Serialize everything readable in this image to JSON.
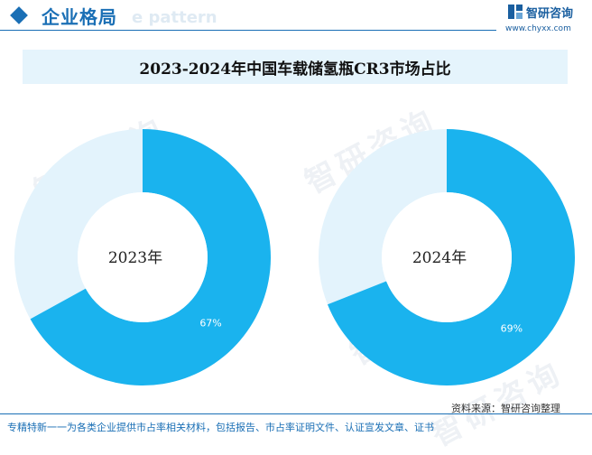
{
  "header": {
    "title": "企业格局",
    "ghost_text": "e pattern",
    "brand_name": "智研咨询",
    "brand_url": "www.chyxx.com",
    "logo_icon": "chyxx-logo-icon",
    "accent_color": "#1a6fb5"
  },
  "watermark": {
    "text": "智研咨询"
  },
  "chart_data": {
    "type": "pie",
    "title": "2023-2024年中国车载储氢瓶CR3市场占比",
    "colors": {
      "share": "#1ab3ee",
      "rest": "#e3f3fc"
    },
    "charts": [
      {
        "year_label": "2023年",
        "value": 67,
        "value_label": "67%"
      },
      {
        "year_label": "2024年",
        "value": 69,
        "value_label": "69%"
      }
    ]
  },
  "footer": {
    "source": "资料来源：智研咨询整理",
    "text": "专精特新一一为各类企业提供市占率相关材料，包括报告、市占率证明文件、认证宣发文章、证书"
  }
}
